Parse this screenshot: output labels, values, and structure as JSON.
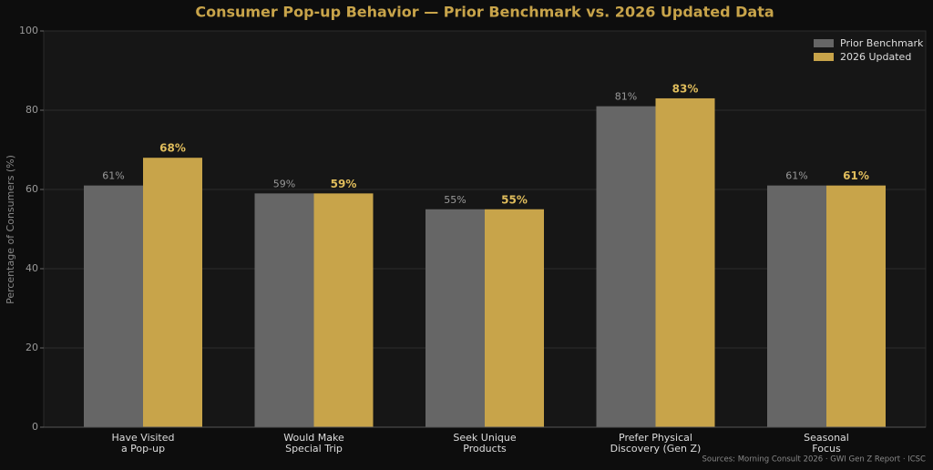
{
  "chart_data": {
    "type": "bar",
    "title": "Consumer Pop-up Behavior — Prior Benchmark vs. 2026 Updated Data",
    "y_label": "Percentage of Consumers (%)",
    "source": "Sources: Morning Consult 2026 · GWI Gen Z Report · ICSC",
    "categories": [
      "Have Visited\na Pop-up",
      "Would Make\nSpecial Trip",
      "Seek Unique\nProducts",
      "Prefer Physical\nDiscovery (Gen Z)",
      "Seasonal\nFocus"
    ],
    "series": [
      {
        "name": "Prior Benchmark",
        "color": "#666666",
        "label_color": "#9a9a9a",
        "values": [
          61,
          59,
          55,
          81,
          61
        ],
        "value_labels": [
          "61%",
          "59%",
          "55%",
          "81%",
          "61%"
        ]
      },
      {
        "name": "2026 Updated",
        "color": "#c8a44a",
        "label_color": "#e0bd5c",
        "values": [
          68,
          59,
          55,
          83,
          61
        ],
        "value_labels": [
          "68%",
          "59%",
          "55%",
          "83%",
          "61%"
        ]
      }
    ],
    "ylim": [
      0,
      100
    ],
    "yticks": [
      0,
      20,
      40,
      60,
      80,
      100
    ],
    "grid": true,
    "legend": "upper right"
  }
}
